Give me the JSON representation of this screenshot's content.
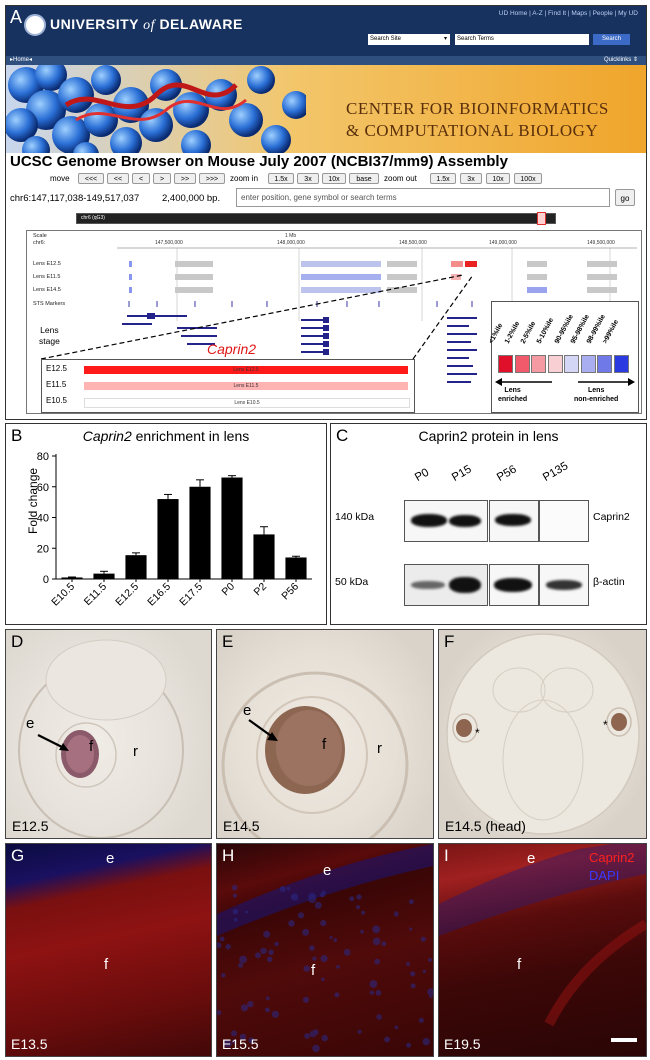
{
  "panelA": {
    "letter": "A",
    "header": {
      "title_pre": "UNIVERSITY",
      "title_of": "of",
      "title_post": "DELAWARE",
      "links": "UD Home | A-Z | Find It | Maps | People | My UD",
      "search_site": "Search Site",
      "search_terms": "Search Terms",
      "search_button": "Search",
      "nav_home": "▸Home◂",
      "nav_quicklinks": "Quicklinks ⇕"
    },
    "banner": {
      "line1": "CENTER FOR BIOINFORMATICS",
      "line2": "& COMPUTATIONAL BIOLOGY"
    },
    "browser": {
      "title": "UCSC Genome Browser on Mouse July 2007 (NCBI37/mm9) Assembly",
      "move_label": "move",
      "move_buttons": [
        "<<<",
        "<<",
        "<",
        ">",
        ">>",
        ">>>"
      ],
      "zoom_in_label": "zoom in",
      "zoom_in_buttons": [
        "1.5x",
        "3x",
        "10x",
        "base"
      ],
      "zoom_out_label": "zoom out",
      "zoom_out_buttons": [
        "1.5x",
        "3x",
        "10x",
        "100x"
      ],
      "position": "chr6:147,117,038-149,517,037",
      "bp": "2,400,000 bp.",
      "search_placeholder": "enter position, gene symbol or search terms",
      "go": "go",
      "ideogram_label": "chr6 (qG3)",
      "scale_label": "1 Mb",
      "coords": [
        "147,500,000",
        "148,000,000",
        "148,500,000",
        "149,000,000",
        "149,500,000"
      ],
      "track_labels": [
        "Scale",
        "chr6:",
        "Lens E12.5",
        "Lens E11.5",
        "Lens E14.5",
        "STS Markers"
      ],
      "lens_stage": "Lens\nstage",
      "caprin2": "Caprin2",
      "zoom_rows": [
        {
          "stage": "E12.5",
          "bar_label": "Lens E12.5",
          "color": "#ff1a1a"
        },
        {
          "stage": "E11.5",
          "bar_label": "Lens E11.5",
          "color": "#ffb3b3"
        },
        {
          "stage": "E10.5",
          "bar_label": "Lens E10.5",
          "color": "#ffffff"
        }
      ],
      "legend_labels": [
        "<1%ile",
        "1-2%ile",
        "2-5%ile",
        "5-10%ile",
        "90-95%ile",
        "95-98%ile",
        "98-99%ile",
        ">99%ile"
      ],
      "legend_colors": [
        "#e0102a",
        "#f05a6a",
        "#f59aa2",
        "#f8cfd2",
        "#d4d6f6",
        "#a9aef0",
        "#7079e8",
        "#2a3ae0"
      ],
      "legend_enriched": "Lens\nenriched",
      "legend_nonenriched": "Lens\nnon-enriched"
    }
  },
  "panelB": {
    "letter": "B",
    "title_gene": "Caprin2",
    "title_rest": " enrichment in lens",
    "ylabel": "Fold change",
    "chart_data": {
      "type": "bar",
      "title": "Caprin2 enrichment in lens",
      "ylabel": "Fold change",
      "xlabel": "",
      "categories": [
        "E10.5",
        "E11.5",
        "E12.5",
        "E16.5",
        "E17.5",
        "P0",
        "P2",
        "P56"
      ],
      "values": [
        1,
        3.5,
        15.5,
        52,
        60,
        66,
        29,
        14
      ],
      "errors": [
        0.3,
        1.5,
        1.5,
        3,
        4.5,
        1.2,
        5,
        0.8
      ],
      "ylim": [
        0,
        80
      ],
      "yticks": [
        0,
        20,
        40,
        60,
        80
      ],
      "grid": false
    }
  },
  "panelC": {
    "letter": "C",
    "title": "Caprin2 protein in lens",
    "lanes": [
      "P0",
      "P15",
      "P56",
      "P135"
    ],
    "kda_top": "140 kDa",
    "kda_bottom": "50 kDa",
    "protein_top": "Caprin2",
    "protein_bottom": "β-actin"
  },
  "panelD": {
    "letter": "D",
    "stage": "E12.5",
    "labels": [
      "e",
      "f",
      "r"
    ]
  },
  "panelE": {
    "letter": "E",
    "stage": "E14.5",
    "labels": [
      "e",
      "f",
      "r"
    ]
  },
  "panelF": {
    "letter": "F",
    "stage": "E14.5 (head)",
    "asterisk": "*"
  },
  "panelG": {
    "letter": "G",
    "stage": "E13.5",
    "labels": [
      "e",
      "f"
    ]
  },
  "panelH": {
    "letter": "H",
    "stage": "E15.5",
    "labels": [
      "e",
      "f"
    ]
  },
  "panelI": {
    "letter": "I",
    "stage": "E19.5",
    "labels": [
      "e",
      "f"
    ],
    "channel_red": "Caprin2",
    "channel_blue": "DAPI",
    "red_color": "#ff2020",
    "blue_color": "#3a3aff"
  }
}
